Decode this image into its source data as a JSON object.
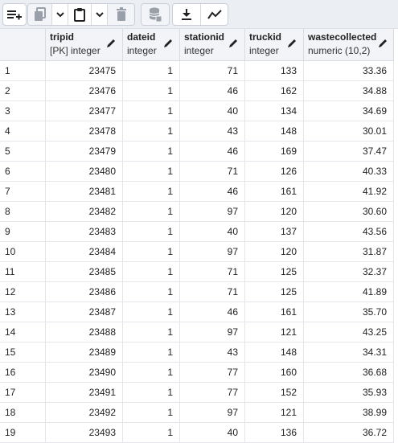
{
  "toolbar": {
    "buttons": [
      {
        "name": "add-row-button",
        "icon": "add-row-icon"
      },
      {
        "name": "copy-button",
        "icon": "copy-icon"
      },
      {
        "name": "copy-options-dropdown",
        "icon": "chevron-down-icon"
      },
      {
        "name": "paste-button",
        "icon": "paste-icon"
      },
      {
        "name": "paste-options-dropdown",
        "icon": "chevron-down-icon"
      },
      {
        "name": "delete-button",
        "icon": "trash-icon"
      },
      {
        "name": "save-data-button",
        "icon": "database-save-icon"
      },
      {
        "name": "download-button",
        "icon": "download-icon"
      },
      {
        "name": "graph-button",
        "icon": "line-graph-icon"
      }
    ]
  },
  "columns": [
    {
      "name": "tripid",
      "type": "[PK] integer"
    },
    {
      "name": "dateid",
      "type": "integer"
    },
    {
      "name": "stationid",
      "type": "integer"
    },
    {
      "name": "truckid",
      "type": "integer"
    },
    {
      "name": "wastecollected",
      "type": "numeric (10,2)"
    }
  ],
  "rows": [
    [
      "1",
      "23475",
      "1",
      "71",
      "133",
      "33.36"
    ],
    [
      "2",
      "23476",
      "1",
      "46",
      "162",
      "34.88"
    ],
    [
      "3",
      "23477",
      "1",
      "40",
      "134",
      "34.69"
    ],
    [
      "4",
      "23478",
      "1",
      "43",
      "148",
      "30.01"
    ],
    [
      "5",
      "23479",
      "1",
      "46",
      "169",
      "37.47"
    ],
    [
      "6",
      "23480",
      "1",
      "71",
      "126",
      "40.33"
    ],
    [
      "7",
      "23481",
      "1",
      "46",
      "161",
      "41.92"
    ],
    [
      "8",
      "23482",
      "1",
      "97",
      "120",
      "30.60"
    ],
    [
      "9",
      "23483",
      "1",
      "40",
      "137",
      "43.56"
    ],
    [
      "10",
      "23484",
      "1",
      "97",
      "120",
      "31.87"
    ],
    [
      "11",
      "23485",
      "1",
      "71",
      "125",
      "32.37"
    ],
    [
      "12",
      "23486",
      "1",
      "71",
      "125",
      "41.89"
    ],
    [
      "13",
      "23487",
      "1",
      "46",
      "161",
      "35.70"
    ],
    [
      "14",
      "23488",
      "1",
      "97",
      "121",
      "43.25"
    ],
    [
      "15",
      "23489",
      "1",
      "43",
      "148",
      "34.31"
    ],
    [
      "16",
      "23490",
      "1",
      "77",
      "160",
      "36.68"
    ],
    [
      "17",
      "23491",
      "1",
      "77",
      "152",
      "35.93"
    ],
    [
      "18",
      "23492",
      "1",
      "97",
      "121",
      "38.99"
    ],
    [
      "19",
      "23493",
      "1",
      "40",
      "136",
      "36.72"
    ]
  ]
}
